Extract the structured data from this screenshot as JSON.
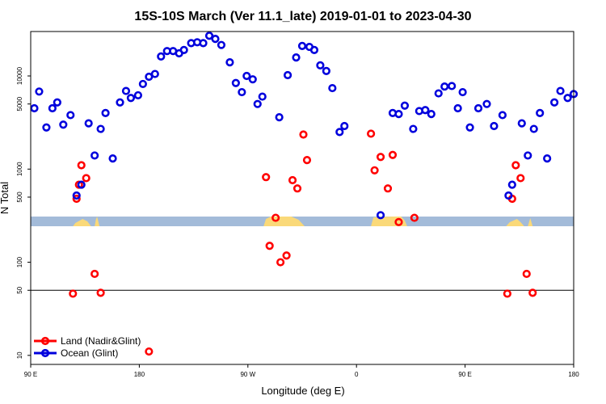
{
  "chart_data": {
    "type": "scatter",
    "title": "15S-10S March (Ver 11.1_late)   2019-01-01 to 2023-04-30",
    "xlabel": "Longitude (deg E)",
    "ylabel": "N Total",
    "y_scale": "log",
    "ylim": [
      8,
      30000
    ],
    "x_ticks": [
      "90 E",
      "180",
      "90 W",
      "0",
      "90 E",
      "180"
    ],
    "y_ticks": [
      "10",
      "50",
      "100",
      "500",
      "1000",
      "5000",
      "10000"
    ],
    "x_description": "longitude eastward from 90 E (0 = 90 E, 450 = 180 on the following wrap)",
    "xlim": [
      0,
      450
    ],
    "reference_line_y": 50,
    "colors": {
      "land": "#ff0000",
      "ocean": "#0000dd",
      "map_ocean": "#a3bbd9",
      "map_land": "#fad979"
    },
    "legend": {
      "position": "bottom-left"
    },
    "series": [
      {
        "name": "Land (Nadir&Glint)",
        "color": "#ff0000",
        "points": [
          [
            35,
            46
          ],
          [
            38,
            480
          ],
          [
            40,
            680
          ],
          [
            42,
            1100
          ],
          [
            46,
            800
          ],
          [
            53,
            75
          ],
          [
            58,
            47
          ],
          [
            98,
            11
          ],
          [
            195,
            820
          ],
          [
            198,
            150
          ],
          [
            203,
            300
          ],
          [
            207,
            100
          ],
          [
            212,
            118
          ],
          [
            217,
            760
          ],
          [
            221,
            620
          ],
          [
            226,
            2350
          ],
          [
            229,
            1250
          ],
          [
            282,
            2400
          ],
          [
            285,
            970
          ],
          [
            290,
            1350
          ],
          [
            296,
            620
          ],
          [
            300,
            1420
          ],
          [
            305,
            270
          ],
          [
            318,
            300
          ],
          [
            395,
            46
          ],
          [
            399,
            480
          ],
          [
            402,
            1100
          ],
          [
            406,
            800
          ],
          [
            411,
            75
          ],
          [
            416,
            47
          ]
        ]
      },
      {
        "name": "Ocean (Glint)",
        "color": "#0000dd",
        "points": [
          [
            3,
            4500
          ],
          [
            7,
            6800
          ],
          [
            13,
            2800
          ],
          [
            18,
            4500
          ],
          [
            22,
            5200
          ],
          [
            27,
            3000
          ],
          [
            33,
            3800
          ],
          [
            38,
            520
          ],
          [
            42,
            680
          ],
          [
            48,
            3100
          ],
          [
            53,
            1400
          ],
          [
            58,
            2700
          ],
          [
            62,
            4000
          ],
          [
            68,
            1300
          ],
          [
            74,
            5200
          ],
          [
            79,
            6900
          ],
          [
            83,
            5800
          ],
          [
            89,
            6200
          ],
          [
            93,
            8200
          ],
          [
            98,
            9800
          ],
          [
            103,
            10500
          ],
          [
            108,
            16200
          ],
          [
            113,
            18500
          ],
          [
            118,
            18500
          ],
          [
            123,
            17500
          ],
          [
            127,
            19000
          ],
          [
            133,
            22500
          ],
          [
            138,
            23000
          ],
          [
            143,
            22500
          ],
          [
            148,
            27000
          ],
          [
            153,
            25000
          ],
          [
            158,
            21500
          ],
          [
            165,
            14000
          ],
          [
            170,
            8400
          ],
          [
            175,
            6700
          ],
          [
            179,
            10000
          ],
          [
            184,
            9200
          ],
          [
            188,
            5000
          ],
          [
            192,
            6000
          ],
          [
            206,
            3600
          ],
          [
            213,
            10200
          ],
          [
            220,
            15800
          ],
          [
            225,
            21000
          ],
          [
            231,
            20500
          ],
          [
            235,
            19000
          ],
          [
            240,
            13000
          ],
          [
            245,
            11300
          ],
          [
            250,
            7400
          ],
          [
            256,
            2500
          ],
          [
            260,
            2900
          ],
          [
            290,
            320
          ],
          [
            300,
            4000
          ],
          [
            305,
            3900
          ],
          [
            310,
            4800
          ],
          [
            317,
            2700
          ],
          [
            322,
            4200
          ],
          [
            327,
            4300
          ],
          [
            332,
            3900
          ],
          [
            338,
            6500
          ],
          [
            343,
            7700
          ],
          [
            349,
            7800
          ],
          [
            354,
            4500
          ],
          [
            358,
            6700
          ],
          [
            364,
            2800
          ],
          [
            371,
            4500
          ],
          [
            378,
            5000
          ],
          [
            384,
            2900
          ],
          [
            391,
            3800
          ],
          [
            396,
            520
          ],
          [
            399,
            680
          ],
          [
            407,
            3100
          ],
          [
            412,
            1400
          ],
          [
            417,
            2700
          ],
          [
            422,
            4000
          ],
          [
            428,
            1300
          ],
          [
            434,
            5200
          ],
          [
            439,
            6900
          ],
          [
            445,
            5800
          ],
          [
            450,
            6400
          ]
        ]
      }
    ]
  }
}
